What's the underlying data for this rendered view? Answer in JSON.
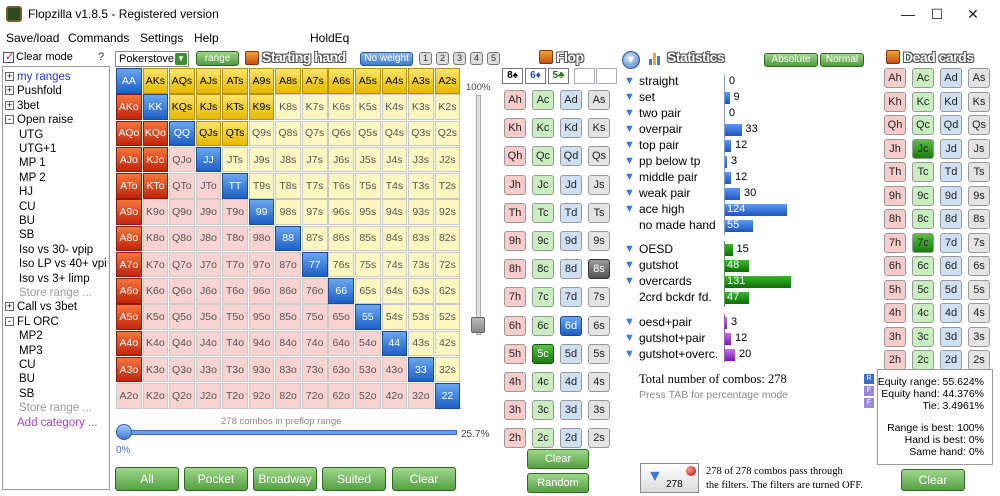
{
  "window": {
    "title": "Flopzilla v1.8.5 - Registered version",
    "minimize": "—",
    "maximize": "☐",
    "close": "✕"
  },
  "menu": [
    "Save/load",
    "Commands",
    "Settings",
    "Help",
    "HoldEq"
  ],
  "left": {
    "clear_mode": "Clear mode",
    "help": "?",
    "tree": [
      {
        "label": "my ranges",
        "exp": "+",
        "color": "#1a3acb",
        "level": 0
      },
      {
        "label": "Pushfold",
        "exp": "+",
        "color": "#000",
        "level": 0
      },
      {
        "label": "3bet",
        "exp": "+",
        "color": "#000",
        "level": 0
      },
      {
        "label": "Open raise",
        "exp": "-",
        "color": "#000",
        "level": 0
      },
      {
        "label": "UTG",
        "color": "#000",
        "level": 1
      },
      {
        "label": "UTG+1",
        "color": "#000",
        "level": 1
      },
      {
        "label": "MP 1",
        "color": "#000",
        "level": 1
      },
      {
        "label": "MP 2",
        "color": "#000",
        "level": 1
      },
      {
        "label": "HJ",
        "color": "#000",
        "level": 1
      },
      {
        "label": "CU",
        "color": "#000",
        "level": 1
      },
      {
        "label": "BU",
        "color": "#000",
        "level": 1
      },
      {
        "label": "SB",
        "color": "#000",
        "level": 1
      },
      {
        "label": "Iso vs 30- vpip",
        "color": "#000",
        "level": 1
      },
      {
        "label": "Iso LP vs 40+ vpi",
        "color": "#000",
        "level": 1
      },
      {
        "label": "Iso vs 3+ limp",
        "color": "#000",
        "level": 1
      },
      {
        "label": "Store range ...",
        "color": "#999",
        "level": 1
      },
      {
        "label": "Call vs 3bet",
        "exp": "+",
        "color": "#000",
        "level": 0
      },
      {
        "label": "FL ORC",
        "exp": "-",
        "color": "#000",
        "level": 0
      },
      {
        "label": "MP2",
        "color": "#000",
        "level": 1
      },
      {
        "label": "MP3",
        "color": "#000",
        "level": 1
      },
      {
        "label": "CU",
        "color": "#000",
        "level": 1
      },
      {
        "label": "BU",
        "color": "#000",
        "level": 1
      },
      {
        "label": "SB",
        "color": "#000",
        "level": 1
      },
      {
        "label": "Store range ...",
        "color": "#999",
        "level": 1
      },
      {
        "label": "Add category ...",
        "color": "#a63fd1",
        "level": 0
      }
    ]
  },
  "controls": {
    "site": "Pokerstove",
    "range_btn": "range",
    "starting_hand": "Starting hand",
    "weight_btn": "No weight",
    "weights": [
      "1",
      "2",
      "3",
      "4",
      "5"
    ],
    "vslider_pct": "100%",
    "hslider_pct": "25.7%",
    "hslider_zero": "0%",
    "combos_label": "278 combos in preflop range",
    "bottom_buttons": [
      "All",
      "Pocket",
      "Broadway",
      "Suited",
      "Clear"
    ]
  },
  "grid": {
    "ranks": [
      "A",
      "K",
      "Q",
      "J",
      "T",
      "9",
      "8",
      "7",
      "6",
      "5",
      "4",
      "3",
      "2"
    ],
    "selected": [
      "AA",
      "AKs",
      "AQs",
      "AJs",
      "ATs",
      "A9s",
      "A8s",
      "A7s",
      "A6s",
      "A5s",
      "A4s",
      "A3s",
      "A2s",
      "AKo",
      "KK",
      "KQs",
      "KJs",
      "KTs",
      "K9s",
      "AQo",
      "KQo",
      "QQ",
      "QJs",
      "QTs",
      "AJo",
      "KJo",
      "JJ",
      "ATo",
      "KTo",
      "TT",
      "A9o",
      "99",
      "A8o",
      "88",
      "A7o",
      "77",
      "A6o",
      "66",
      "A5o",
      "55",
      "A4o",
      "44",
      "A3o",
      "33",
      "22"
    ]
  },
  "flop": {
    "title": "Flop",
    "board": [
      "8♠",
      "6♦",
      "5♣",
      "",
      ""
    ],
    "ranks": [
      "A",
      "K",
      "Q",
      "J",
      "T",
      "9",
      "8",
      "7",
      "6",
      "5",
      "4",
      "3",
      "2"
    ],
    "selected": [
      "8s",
      "6d",
      "5c"
    ],
    "clear": "Clear",
    "random": "Random"
  },
  "stats": {
    "title": "Statistics",
    "absolute": "Absolute",
    "normal": "Normal",
    "rows": [
      {
        "label": "straight",
        "value": 0,
        "color": "blue",
        "funnel": true
      },
      {
        "label": "set",
        "value": 9,
        "color": "blue",
        "funnel": true
      },
      {
        "label": "two pair",
        "value": 0,
        "color": "blue",
        "funnel": true
      },
      {
        "label": "overpair",
        "value": 33,
        "color": "blue",
        "funnel": true
      },
      {
        "label": "top pair",
        "value": 12,
        "color": "blue",
        "funnel": true
      },
      {
        "label": "pp below tp",
        "value": 3,
        "color": "blue",
        "funnel": true
      },
      {
        "label": "middle pair",
        "value": 12,
        "color": "blue",
        "funnel": true
      },
      {
        "label": "weak pair",
        "value": 30,
        "color": "blue",
        "funnel": true
      },
      {
        "label": "ace high",
        "value": 124,
        "color": "blue",
        "funnel": true
      },
      {
        "label": "no made hand",
        "value": 55,
        "color": "blue",
        "funnel": false
      },
      {
        "label": "OESD",
        "value": 15,
        "color": "green",
        "funnel": true
      },
      {
        "label": "gutshot",
        "value": 48,
        "color": "green",
        "funnel": true
      },
      {
        "label": "overcards",
        "value": 131,
        "color": "green",
        "funnel": true
      },
      {
        "label": "2crd bckdr fd.",
        "value": 47,
        "color": "green",
        "funnel": false
      },
      {
        "label": "oesd+pair",
        "value": 3,
        "color": "purple",
        "funnel": true
      },
      {
        "label": "gutshot+pair",
        "value": 12,
        "color": "purple",
        "funnel": true
      },
      {
        "label": "gutshot+overc.",
        "value": 20,
        "color": "purple",
        "funnel": true
      }
    ],
    "total": "Total number of combos: 278",
    "tab_hint": "Press TAB for percentage mode",
    "filter_count": "278",
    "filter_text_1": "278 of 278 combos pass through",
    "filter_text_2": "the filters. The filters are turned OFF."
  },
  "dead": {
    "title": "Dead cards",
    "ranks": [
      "A",
      "K",
      "Q",
      "J",
      "T",
      "9",
      "8",
      "7",
      "6",
      "5",
      "4",
      "3",
      "2"
    ],
    "selected": [
      "Jc",
      "7c"
    ],
    "equity": {
      "range": "Equity range: 55.624%",
      "hand": "Equity hand: 44.376%",
      "tie": "Tie: 3.4961%",
      "range_best": "Range is best: 100%",
      "hand_best": "Hand is best: 0%",
      "same_hand": "Same hand: 0%"
    },
    "clear": "Clear"
  }
}
